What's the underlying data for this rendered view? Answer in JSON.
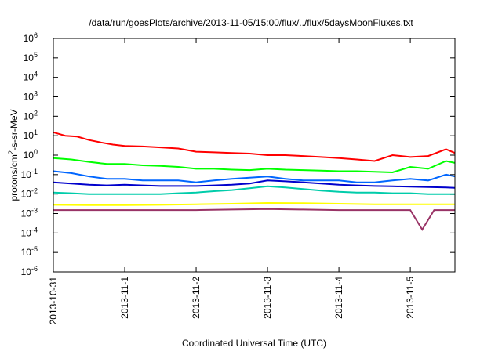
{
  "chart_data": {
    "type": "line",
    "title": "/data/run/goesPlots/archive/2013-11-05/15:00/flux/../flux/5daysMoonFluxes.txt",
    "xlabel": "Coordinated Universal Time (UTC)",
    "ylabel": "protons/cm2-s-sr-MeV",
    "y_scale": "log",
    "ylim": [
      1e-06,
      1000000.0
    ],
    "xlim": [
      "2013-10-31T00:00",
      "2013-11-05T15:00"
    ],
    "x_ticks": [
      "2013-10-31",
      "2013-11-1",
      "2013-11-2",
      "2013-11-3",
      "2013-11-4",
      "2013-11-5"
    ],
    "y_ticks": [
      {
        "mantissa": "10",
        "exponent": "-6"
      },
      {
        "mantissa": "10",
        "exponent": "-5"
      },
      {
        "mantissa": "10",
        "exponent": "-4"
      },
      {
        "mantissa": "10",
        "exponent": "-3"
      },
      {
        "mantissa": "10",
        "exponent": "-2"
      },
      {
        "mantissa": "10",
        "exponent": "-1"
      },
      {
        "mantissa": "10",
        "exponent": "0"
      },
      {
        "mantissa": "10",
        "exponent": "1"
      },
      {
        "mantissa": "10",
        "exponent": "2"
      },
      {
        "mantissa": "10",
        "exponent": "3"
      },
      {
        "mantissa": "10",
        "exponent": "4"
      },
      {
        "mantissa": "10",
        "exponent": "5"
      },
      {
        "mantissa": "10",
        "exponent": "6"
      }
    ],
    "grid": false,
    "legend": "none",
    "series": [
      {
        "color": "#ff0000",
        "x": [
          "2013-10-31T00:00",
          "2013-10-31T04:00",
          "2013-10-31T08:00",
          "2013-10-31T12:00",
          "2013-10-31T16:00",
          "2013-10-31T20:00",
          "2013-11-01T00:00",
          "2013-11-01T06:00",
          "2013-11-01T12:00",
          "2013-11-01T18:00",
          "2013-11-02T00:00",
          "2013-11-02T06:00",
          "2013-11-02T12:00",
          "2013-11-02T18:00",
          "2013-11-03T00:00",
          "2013-11-03T06:00",
          "2013-11-03T12:00",
          "2013-11-03T18:00",
          "2013-11-04T00:00",
          "2013-11-04T06:00",
          "2013-11-04T12:00",
          "2013-11-04T18:00",
          "2013-11-05T00:00",
          "2013-11-05T06:00",
          "2013-11-05T12:00",
          "2013-11-05T15:00"
        ],
        "y": [
          15,
          10,
          9,
          6,
          4.5,
          3.5,
          3,
          2.8,
          2.5,
          2.2,
          1.5,
          1.4,
          1.3,
          1.2,
          1.0,
          1.0,
          0.9,
          0.8,
          0.7,
          0.6,
          0.5,
          1.0,
          0.8,
          0.9,
          2.0,
          1.3
        ]
      },
      {
        "color": "#00ff00",
        "x": [
          "2013-10-31T00:00",
          "2013-10-31T06:00",
          "2013-10-31T12:00",
          "2013-10-31T18:00",
          "2013-11-01T00:00",
          "2013-11-01T06:00",
          "2013-11-01T12:00",
          "2013-11-01T18:00",
          "2013-11-02T00:00",
          "2013-11-02T06:00",
          "2013-11-02T12:00",
          "2013-11-02T18:00",
          "2013-11-03T00:00",
          "2013-11-03T06:00",
          "2013-11-03T12:00",
          "2013-11-03T18:00",
          "2013-11-04T00:00",
          "2013-11-04T06:00",
          "2013-11-04T12:00",
          "2013-11-04T18:00",
          "2013-11-05T00:00",
          "2013-11-05T06:00",
          "2013-11-05T12:00",
          "2013-11-05T15:00"
        ],
        "y": [
          0.7,
          0.6,
          0.45,
          0.35,
          0.35,
          0.3,
          0.28,
          0.25,
          0.2,
          0.2,
          0.18,
          0.17,
          0.2,
          0.18,
          0.17,
          0.16,
          0.15,
          0.15,
          0.14,
          0.13,
          0.25,
          0.2,
          0.5,
          0.4
        ]
      },
      {
        "color": "#0066ff",
        "x": [
          "2013-10-31T00:00",
          "2013-10-31T06:00",
          "2013-10-31T12:00",
          "2013-10-31T18:00",
          "2013-11-01T00:00",
          "2013-11-01T06:00",
          "2013-11-01T12:00",
          "2013-11-01T18:00",
          "2013-11-02T00:00",
          "2013-11-02T06:00",
          "2013-11-02T12:00",
          "2013-11-02T18:00",
          "2013-11-03T00:00",
          "2013-11-03T06:00",
          "2013-11-03T12:00",
          "2013-11-03T18:00",
          "2013-11-04T00:00",
          "2013-11-04T06:00",
          "2013-11-04T12:00",
          "2013-11-04T18:00",
          "2013-11-05T00:00",
          "2013-11-05T06:00",
          "2013-11-05T12:00",
          "2013-11-05T15:00"
        ],
        "y": [
          0.15,
          0.12,
          0.08,
          0.06,
          0.06,
          0.05,
          0.05,
          0.05,
          0.04,
          0.05,
          0.06,
          0.07,
          0.08,
          0.06,
          0.05,
          0.05,
          0.05,
          0.04,
          0.04,
          0.05,
          0.06,
          0.05,
          0.1,
          0.08
        ]
      },
      {
        "color": "#0000cc",
        "x": [
          "2013-10-31T00:00",
          "2013-10-31T06:00",
          "2013-10-31T12:00",
          "2013-10-31T18:00",
          "2013-11-01T00:00",
          "2013-11-01T06:00",
          "2013-11-01T12:00",
          "2013-11-01T18:00",
          "2013-11-02T00:00",
          "2013-11-02T06:00",
          "2013-11-02T12:00",
          "2013-11-02T18:00",
          "2013-11-03T00:00",
          "2013-11-03T06:00",
          "2013-11-03T12:00",
          "2013-11-03T18:00",
          "2013-11-04T00:00",
          "2013-11-04T06:00",
          "2013-11-04T12:00",
          "2013-11-04T18:00",
          "2013-11-05T00:00",
          "2013-11-05T06:00",
          "2013-11-05T12:00",
          "2013-11-05T15:00"
        ],
        "y": [
          0.04,
          0.035,
          0.03,
          0.028,
          0.03,
          0.028,
          0.026,
          0.026,
          0.026,
          0.028,
          0.03,
          0.035,
          0.05,
          0.045,
          0.04,
          0.035,
          0.03,
          0.028,
          0.026,
          0.025,
          0.024,
          0.023,
          0.022,
          0.021
        ]
      },
      {
        "color": "#00ccaa",
        "x": [
          "2013-10-31T00:00",
          "2013-10-31T06:00",
          "2013-10-31T12:00",
          "2013-10-31T18:00",
          "2013-11-01T00:00",
          "2013-11-01T06:00",
          "2013-11-01T12:00",
          "2013-11-01T18:00",
          "2013-11-02T00:00",
          "2013-11-02T06:00",
          "2013-11-02T12:00",
          "2013-11-02T18:00",
          "2013-11-03T00:00",
          "2013-11-03T06:00",
          "2013-11-03T12:00",
          "2013-11-03T18:00",
          "2013-11-04T00:00",
          "2013-11-04T06:00",
          "2013-11-04T12:00",
          "2013-11-04T18:00",
          "2013-11-05T00:00",
          "2013-11-05T06:00",
          "2013-11-05T12:00",
          "2013-11-05T15:00"
        ],
        "y": [
          0.012,
          0.011,
          0.01,
          0.01,
          0.01,
          0.01,
          0.01,
          0.011,
          0.012,
          0.014,
          0.016,
          0.02,
          0.025,
          0.022,
          0.018,
          0.015,
          0.013,
          0.012,
          0.012,
          0.011,
          0.011,
          0.01,
          0.01,
          0.01
        ]
      },
      {
        "color": "#ffff00",
        "x": [
          "2013-10-31T00:00",
          "2013-10-31T12:00",
          "2013-11-01T00:00",
          "2013-11-01T12:00",
          "2013-11-02T00:00",
          "2013-11-02T12:00",
          "2013-11-03T00:00",
          "2013-11-03T12:00",
          "2013-11-04T00:00",
          "2013-11-04T12:00",
          "2013-11-05T00:00",
          "2013-11-05T12:00",
          "2013-11-05T15:00"
        ],
        "y": [
          0.0028,
          0.0027,
          0.0027,
          0.0028,
          0.003,
          0.0032,
          0.0035,
          0.0034,
          0.0032,
          0.003,
          0.003,
          0.003,
          0.003
        ]
      },
      {
        "color": "#993366",
        "x": [
          "2013-10-31T00:00",
          "2013-10-31T12:00",
          "2013-11-01T00:00",
          "2013-11-01T12:00",
          "2013-11-02T00:00",
          "2013-11-02T12:00",
          "2013-11-03T00:00",
          "2013-11-03T12:00",
          "2013-11-04T00:00",
          "2013-11-04T12:00",
          "2013-11-05T00:00",
          "2013-11-05T04:00",
          "2013-11-05T08:00",
          "2013-11-05T15:00"
        ],
        "y": [
          0.0015,
          0.0015,
          0.0015,
          0.0015,
          0.0015,
          0.0016,
          0.0017,
          0.0016,
          0.0015,
          0.0015,
          0.0015,
          0.00015,
          0.0015,
          0.0015
        ]
      }
    ]
  }
}
